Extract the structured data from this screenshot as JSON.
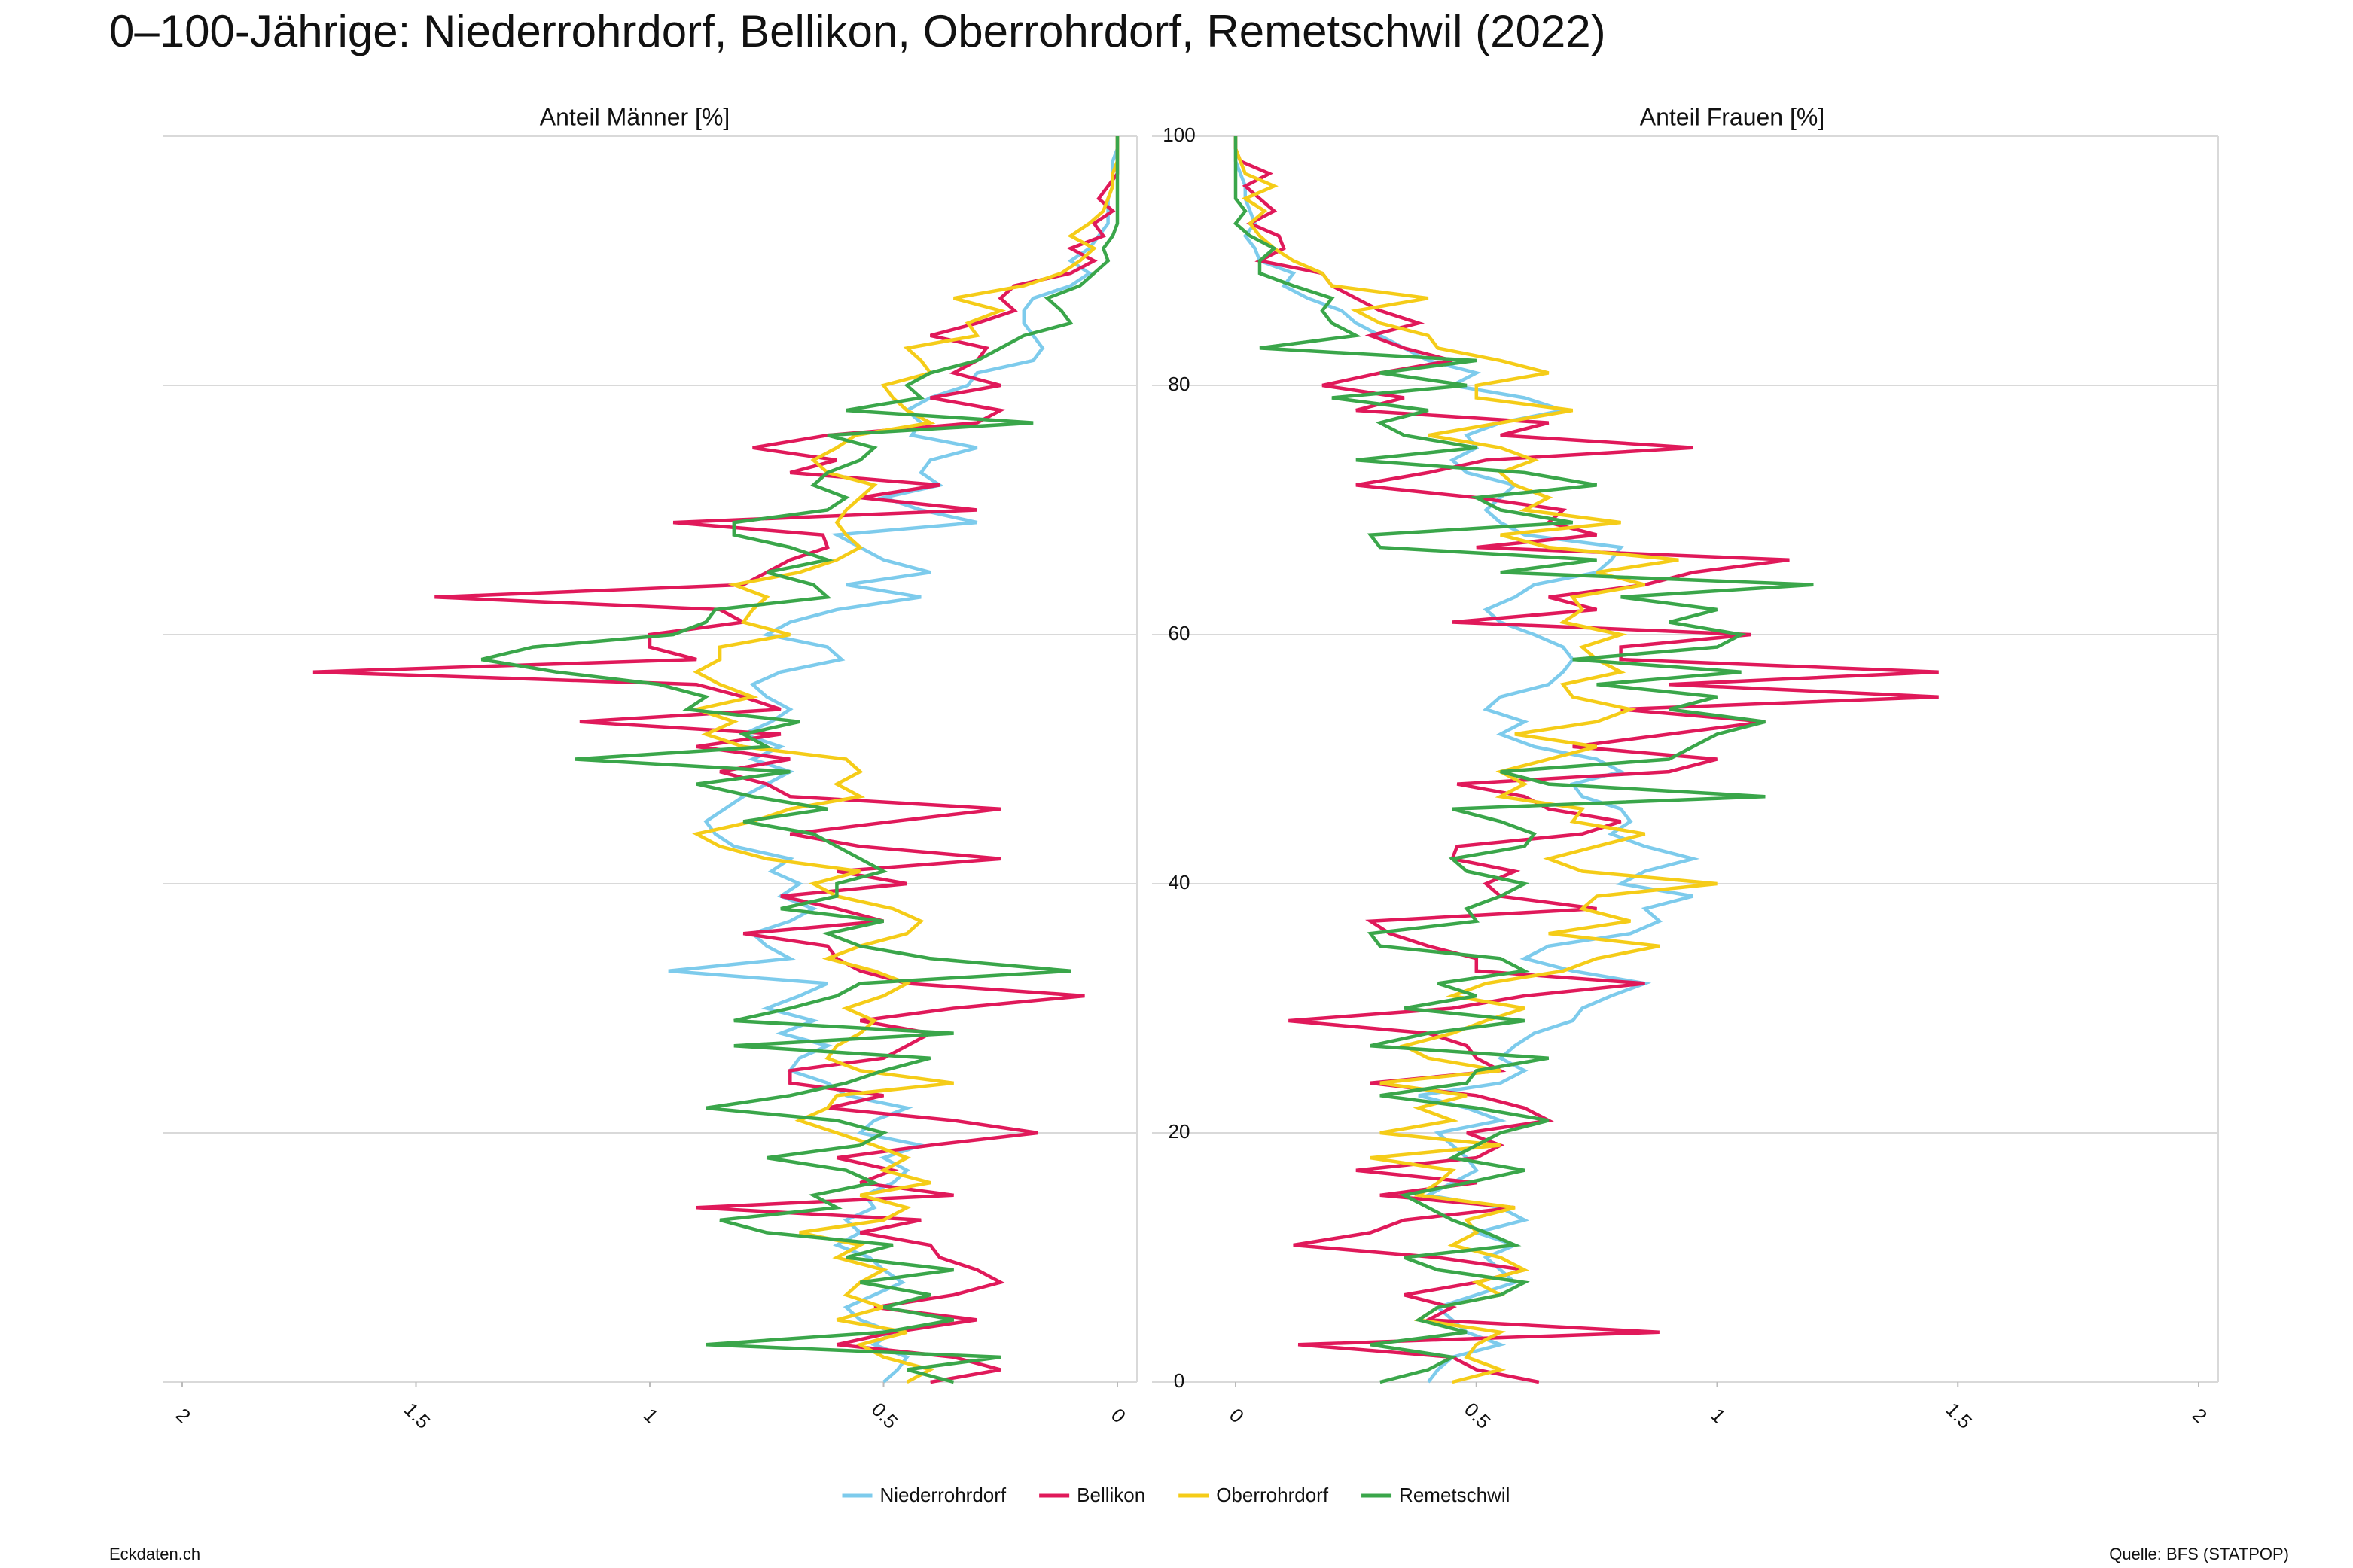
{
  "title": "0–100-Jährige: Niederrohrdorf, Bellikon, Oberrohrdorf, Remetschwil (2022)",
  "footer": {
    "left": "Eckdaten.ch",
    "right": "Quelle: BFS (STATPOP)"
  },
  "chart_data": [
    {
      "type": "line",
      "subtitle": "Anteil Männer [%]",
      "xlim": [
        2,
        0
      ],
      "xticks": [
        2,
        1.5,
        1,
        0.5,
        0
      ],
      "ylim": [
        0,
        100
      ],
      "yticks": [
        0,
        20,
        40,
        60,
        80,
        100
      ],
      "grid": true,
      "ages": [
        0,
        1,
        2,
        3,
        4,
        5,
        6,
        7,
        8,
        9,
        10,
        11,
        12,
        13,
        14,
        15,
        16,
        17,
        18,
        19,
        20,
        21,
        22,
        23,
        24,
        25,
        26,
        27,
        28,
        29,
        30,
        31,
        32,
        33,
        34,
        35,
        36,
        37,
        38,
        39,
        40,
        41,
        42,
        43,
        44,
        45,
        46,
        47,
        48,
        49,
        50,
        51,
        52,
        53,
        54,
        55,
        56,
        57,
        58,
        59,
        60,
        61,
        62,
        63,
        64,
        65,
        66,
        67,
        68,
        69,
        70,
        71,
        72,
        73,
        74,
        75,
        76,
        77,
        78,
        79,
        80,
        81,
        82,
        83,
        84,
        85,
        86,
        87,
        88,
        89,
        90,
        91,
        92,
        93,
        94,
        95,
        96,
        97,
        98,
        99,
        100
      ],
      "series": [
        {
          "name": "Niederrohrdorf",
          "color": "#7dcbec",
          "values": [
            0.5,
            0.47,
            0.45,
            0.52,
            0.48,
            0.55,
            0.58,
            0.52,
            0.46,
            0.5,
            0.53,
            0.6,
            0.55,
            0.58,
            0.52,
            0.54,
            0.48,
            0.45,
            0.5,
            0.42,
            0.55,
            0.52,
            0.45,
            0.58,
            0.62,
            0.7,
            0.68,
            0.62,
            0.72,
            0.65,
            0.75,
            0.68,
            0.62,
            0.96,
            0.7,
            0.75,
            0.78,
            0.7,
            0.65,
            0.72,
            0.68,
            0.74,
            0.7,
            0.82,
            0.86,
            0.88,
            0.84,
            0.8,
            0.75,
            0.7,
            0.78,
            0.72,
            0.8,
            0.74,
            0.7,
            0.75,
            0.78,
            0.72,
            0.59,
            0.62,
            0.75,
            0.7,
            0.6,
            0.42,
            0.58,
            0.4,
            0.5,
            0.55,
            0.6,
            0.3,
            0.42,
            0.5,
            0.38,
            0.42,
            0.4,
            0.3,
            0.44,
            0.42,
            0.45,
            0.4,
            0.32,
            0.3,
            0.18,
            0.16,
            0.18,
            0.2,
            0.2,
            0.18,
            0.1,
            0.06,
            0.1,
            0.06,
            0.04,
            0.02,
            0.02,
            0.02,
            0.01,
            0.01,
            0.01,
            0.0,
            0.0
          ]
        },
        {
          "name": "Bellikon",
          "color": "#e0195a",
          "values": [
            0.4,
            0.25,
            0.35,
            0.6,
            0.48,
            0.3,
            0.52,
            0.35,
            0.25,
            0.3,
            0.38,
            0.4,
            0.55,
            0.42,
            0.9,
            0.35,
            0.55,
            0.48,
            0.6,
            0.4,
            0.17,
            0.35,
            0.62,
            0.5,
            0.7,
            0.7,
            0.5,
            0.45,
            0.4,
            0.55,
            0.35,
            0.07,
            0.45,
            0.55,
            0.6,
            0.62,
            0.8,
            0.5,
            0.6,
            0.72,
            0.45,
            0.6,
            0.25,
            0.55,
            0.7,
            0.48,
            0.25,
            0.7,
            0.75,
            0.85,
            0.7,
            0.9,
            0.72,
            1.15,
            0.72,
            0.8,
            0.9,
            1.72,
            0.9,
            1.0,
            1.0,
            0.8,
            0.85,
            1.46,
            0.8,
            0.75,
            0.7,
            0.62,
            0.63,
            0.95,
            0.3,
            0.55,
            0.38,
            0.7,
            0.6,
            0.78,
            0.62,
            0.3,
            0.25,
            0.4,
            0.25,
            0.35,
            0.3,
            0.28,
            0.4,
            0.3,
            0.22,
            0.25,
            0.22,
            0.1,
            0.05,
            0.1,
            0.03,
            0.05,
            0.01,
            0.04,
            0.02,
            0.0,
            0.0,
            0.0,
            0.0
          ]
        },
        {
          "name": "Oberrohrdorf",
          "color": "#f5cc18",
          "values": [
            0.45,
            0.4,
            0.5,
            0.55,
            0.45,
            0.6,
            0.5,
            0.58,
            0.55,
            0.5,
            0.6,
            0.55,
            0.68,
            0.5,
            0.45,
            0.55,
            0.4,
            0.5,
            0.45,
            0.52,
            0.6,
            0.68,
            0.62,
            0.6,
            0.35,
            0.55,
            0.62,
            0.6,
            0.55,
            0.52,
            0.58,
            0.5,
            0.45,
            0.52,
            0.62,
            0.55,
            0.45,
            0.42,
            0.48,
            0.6,
            0.65,
            0.55,
            0.75,
            0.85,
            0.9,
            0.78,
            0.7,
            0.55,
            0.6,
            0.55,
            0.58,
            0.8,
            0.88,
            0.82,
            0.9,
            0.78,
            0.85,
            0.9,
            0.85,
            0.85,
            0.7,
            0.8,
            0.78,
            0.75,
            0.82,
            0.68,
            0.6,
            0.55,
            0.58,
            0.6,
            0.58,
            0.55,
            0.52,
            0.62,
            0.65,
            0.6,
            0.56,
            0.4,
            0.45,
            0.48,
            0.5,
            0.4,
            0.42,
            0.45,
            0.3,
            0.32,
            0.25,
            0.35,
            0.2,
            0.12,
            0.08,
            0.05,
            0.1,
            0.06,
            0.03,
            0.02,
            0.01,
            0.01,
            0.0,
            0.0,
            0.0
          ]
        },
        {
          "name": "Remetschwil",
          "color": "#3aa64a",
          "values": [
            0.35,
            0.45,
            0.25,
            0.88,
            0.5,
            0.35,
            0.5,
            0.4,
            0.55,
            0.35,
            0.58,
            0.48,
            0.75,
            0.85,
            0.6,
            0.65,
            0.52,
            0.58,
            0.75,
            0.55,
            0.5,
            0.6,
            0.88,
            0.7,
            0.58,
            0.5,
            0.4,
            0.82,
            0.35,
            0.82,
            0.7,
            0.6,
            0.55,
            0.1,
            0.4,
            0.55,
            0.62,
            0.5,
            0.72,
            0.6,
            0.6,
            0.5,
            0.55,
            0.6,
            0.65,
            0.8,
            0.62,
            0.78,
            0.9,
            0.7,
            1.16,
            0.75,
            0.8,
            0.68,
            0.92,
            0.88,
            0.98,
            1.2,
            1.36,
            1.25,
            0.95,
            0.88,
            0.86,
            0.62,
            0.65,
            0.75,
            0.62,
            0.7,
            0.82,
            0.82,
            0.62,
            0.58,
            0.65,
            0.62,
            0.55,
            0.52,
            0.62,
            0.18,
            0.58,
            0.42,
            0.45,
            0.4,
            0.3,
            0.25,
            0.2,
            0.1,
            0.12,
            0.15,
            0.08,
            0.05,
            0.02,
            0.03,
            0.01,
            0.0,
            0.0,
            0.0,
            0.0,
            0.0,
            0.0,
            0.0,
            0.0
          ]
        }
      ]
    },
    {
      "type": "line",
      "subtitle": "Anteil Frauen [%]",
      "xlim": [
        0,
        2
      ],
      "xticks": [
        0,
        0.5,
        1,
        1.5,
        2
      ],
      "ylim": [
        0,
        100
      ],
      "yticks": [
        0,
        20,
        40,
        60,
        80,
        100
      ],
      "grid": true,
      "ages": [
        0,
        1,
        2,
        3,
        4,
        5,
        6,
        7,
        8,
        9,
        10,
        11,
        12,
        13,
        14,
        15,
        16,
        17,
        18,
        19,
        20,
        21,
        22,
        23,
        24,
        25,
        26,
        27,
        28,
        29,
        30,
        31,
        32,
        33,
        34,
        35,
        36,
        37,
        38,
        39,
        40,
        41,
        42,
        43,
        44,
        45,
        46,
        47,
        48,
        49,
        50,
        51,
        52,
        53,
        54,
        55,
        56,
        57,
        58,
        59,
        60,
        61,
        62,
        63,
        64,
        65,
        66,
        67,
        68,
        69,
        70,
        71,
        72,
        73,
        74,
        75,
        76,
        77,
        78,
        79,
        80,
        81,
        82,
        83,
        84,
        85,
        86,
        87,
        88,
        89,
        90,
        91,
        92,
        93,
        94,
        95,
        96,
        97,
        98,
        99,
        100
      ],
      "series": [
        {
          "name": "Niederrohrdorf",
          "color": "#7dcbec",
          "values": [
            0.4,
            0.42,
            0.45,
            0.55,
            0.48,
            0.45,
            0.42,
            0.5,
            0.58,
            0.55,
            0.52,
            0.58,
            0.5,
            0.6,
            0.55,
            0.4,
            0.45,
            0.5,
            0.48,
            0.45,
            0.42,
            0.55,
            0.48,
            0.38,
            0.55,
            0.6,
            0.55,
            0.58,
            0.62,
            0.7,
            0.72,
            0.78,
            0.85,
            0.7,
            0.6,
            0.65,
            0.82,
            0.88,
            0.85,
            0.95,
            0.8,
            0.85,
            0.95,
            0.85,
            0.78,
            0.82,
            0.8,
            0.72,
            0.7,
            0.8,
            0.75,
            0.62,
            0.55,
            0.6,
            0.52,
            0.55,
            0.65,
            0.68,
            0.7,
            0.68,
            0.62,
            0.55,
            0.52,
            0.58,
            0.62,
            0.75,
            0.78,
            0.8,
            0.6,
            0.55,
            0.52,
            0.55,
            0.58,
            0.48,
            0.45,
            0.5,
            0.48,
            0.55,
            0.68,
            0.6,
            0.45,
            0.5,
            0.4,
            0.35,
            0.3,
            0.25,
            0.22,
            0.15,
            0.1,
            0.12,
            0.05,
            0.04,
            0.02,
            0.04,
            0.03,
            0.02,
            0.02,
            0.01,
            0.0,
            0.0,
            0.0
          ]
        },
        {
          "name": "Bellikon",
          "color": "#e0195a",
          "values": [
            0.63,
            0.5,
            0.45,
            0.13,
            0.88,
            0.4,
            0.45,
            0.35,
            0.5,
            0.6,
            0.42,
            0.12,
            0.28,
            0.35,
            0.58,
            0.3,
            0.5,
            0.25,
            0.5,
            0.55,
            0.48,
            0.65,
            0.6,
            0.5,
            0.28,
            0.55,
            0.5,
            0.48,
            0.4,
            0.11,
            0.45,
            0.6,
            0.85,
            0.5,
            0.5,
            0.4,
            0.32,
            0.28,
            0.75,
            0.55,
            0.52,
            0.58,
            0.45,
            0.46,
            0.72,
            0.8,
            0.65,
            0.6,
            0.46,
            0.9,
            1.0,
            0.7,
            0.9,
            1.1,
            0.8,
            1.46,
            0.9,
            1.46,
            0.8,
            0.8,
            1.07,
            0.45,
            0.75,
            0.65,
            0.85,
            0.95,
            1.15,
            0.5,
            0.75,
            0.65,
            0.68,
            0.5,
            0.25,
            0.4,
            0.52,
            0.95,
            0.55,
            0.65,
            0.25,
            0.35,
            0.18,
            0.3,
            0.45,
            0.35,
            0.28,
            0.38,
            0.3,
            0.25,
            0.2,
            0.18,
            0.05,
            0.1,
            0.09,
            0.03,
            0.08,
            0.05,
            0.02,
            0.07,
            0.01,
            0.0,
            0.0
          ]
        },
        {
          "name": "Oberrohrdorf",
          "color": "#f5cc18",
          "values": [
            0.45,
            0.55,
            0.48,
            0.5,
            0.55,
            0.38,
            0.42,
            0.55,
            0.5,
            0.6,
            0.55,
            0.45,
            0.5,
            0.48,
            0.58,
            0.38,
            0.42,
            0.45,
            0.28,
            0.55,
            0.3,
            0.45,
            0.38,
            0.48,
            0.3,
            0.55,
            0.4,
            0.35,
            0.45,
            0.52,
            0.6,
            0.45,
            0.52,
            0.68,
            0.75,
            0.88,
            0.65,
            0.82,
            0.72,
            0.75,
            1.0,
            0.72,
            0.65,
            0.75,
            0.85,
            0.7,
            0.72,
            0.55,
            0.6,
            0.55,
            0.65,
            0.75,
            0.58,
            0.75,
            0.82,
            0.7,
            0.68,
            0.8,
            0.75,
            0.72,
            0.8,
            0.68,
            0.72,
            0.7,
            0.85,
            0.75,
            0.92,
            0.65,
            0.55,
            0.8,
            0.6,
            0.65,
            0.58,
            0.55,
            0.62,
            0.55,
            0.4,
            0.55,
            0.7,
            0.5,
            0.5,
            0.65,
            0.55,
            0.42,
            0.4,
            0.3,
            0.25,
            0.4,
            0.2,
            0.18,
            0.12,
            0.08,
            0.05,
            0.03,
            0.06,
            0.02,
            0.08,
            0.02,
            0.01,
            0.0,
            0.0
          ]
        },
        {
          "name": "Remetschwil",
          "color": "#3aa64a",
          "values": [
            0.3,
            0.4,
            0.45,
            0.28,
            0.48,
            0.38,
            0.42,
            0.55,
            0.6,
            0.42,
            0.35,
            0.58,
            0.52,
            0.45,
            0.4,
            0.35,
            0.48,
            0.6,
            0.45,
            0.5,
            0.55,
            0.65,
            0.5,
            0.3,
            0.48,
            0.5,
            0.65,
            0.28,
            0.4,
            0.6,
            0.35,
            0.5,
            0.42,
            0.6,
            0.55,
            0.3,
            0.28,
            0.5,
            0.48,
            0.55,
            0.6,
            0.48,
            0.45,
            0.6,
            0.62,
            0.55,
            0.45,
            1.1,
            0.65,
            0.55,
            0.9,
            0.95,
            1.0,
            1.1,
            0.9,
            1.0,
            0.75,
            1.05,
            0.7,
            1.0,
            1.05,
            0.9,
            1.0,
            0.8,
            1.2,
            0.55,
            0.75,
            0.3,
            0.28,
            0.7,
            0.55,
            0.5,
            0.75,
            0.6,
            0.25,
            0.5,
            0.35,
            0.3,
            0.4,
            0.2,
            0.48,
            0.3,
            0.5,
            0.05,
            0.25,
            0.2,
            0.18,
            0.2,
            0.12,
            0.05,
            0.05,
            0.08,
            0.03,
            0.0,
            0.02,
            0.0,
            0.0,
            0.0,
            0.0,
            0.0,
            0.0
          ]
        }
      ]
    }
  ]
}
